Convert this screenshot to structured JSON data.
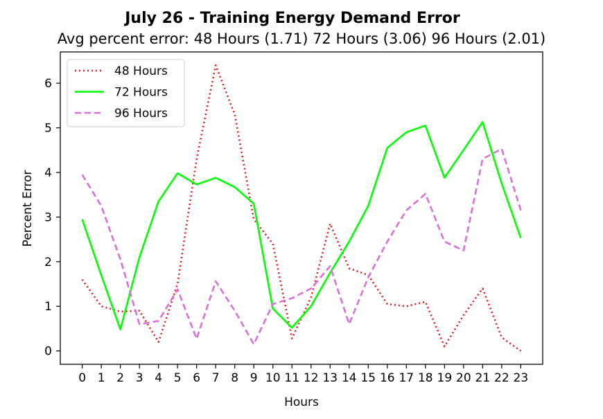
{
  "chart_data": {
    "type": "line",
    "title": "July 26 - Training Energy Demand Error",
    "subtitle": "Avg percent error: 48 Hours (1.71) 72 Hours (3.06) 96 Hours (2.01)",
    "xlabel": "Hours",
    "ylabel": "Percent Error",
    "x": [
      0,
      1,
      2,
      3,
      4,
      5,
      6,
      7,
      8,
      9,
      10,
      11,
      12,
      13,
      14,
      15,
      16,
      17,
      18,
      19,
      20,
      21,
      22,
      23
    ],
    "x_tick_labels": [
      "0",
      "1",
      "2",
      "3",
      "4",
      "5",
      "6",
      "7",
      "8",
      "9",
      "10",
      "11",
      "12",
      "13",
      "14",
      "15",
      "16",
      "17",
      "18",
      "19",
      "20",
      "21",
      "22",
      "23"
    ],
    "y_tick_labels": [
      "0",
      "1",
      "2",
      "3",
      "4",
      "5",
      "6"
    ],
    "xlim": [
      -1.15,
      24.15
    ],
    "ylim": [
      -0.3,
      6.7
    ],
    "grid": false,
    "legend_position": "top-left",
    "series": [
      {
        "name": "48 Hours",
        "color": "#e41a1c",
        "style": "dotted",
        "values": [
          1.6,
          1.0,
          0.88,
          0.9,
          0.2,
          1.5,
          4.3,
          6.4,
          5.3,
          2.95,
          2.4,
          0.28,
          1.2,
          2.85,
          1.85,
          1.7,
          1.05,
          1.0,
          1.1,
          0.1,
          0.8,
          1.4,
          0.3,
          0.0
        ]
      },
      {
        "name": "72 Hours",
        "color": "#00ff00",
        "style": "solid",
        "values": [
          2.95,
          1.7,
          0.48,
          2.1,
          3.35,
          3.98,
          3.73,
          3.88,
          3.67,
          3.3,
          0.95,
          0.52,
          1.0,
          1.75,
          2.45,
          3.25,
          4.55,
          4.9,
          5.05,
          3.88,
          4.5,
          5.13,
          3.75,
          2.53
        ]
      },
      {
        "name": "96 Hours",
        "color": "#da70d6",
        "style": "dashed",
        "values": [
          3.95,
          3.25,
          2.05,
          0.6,
          0.67,
          1.38,
          0.27,
          1.56,
          0.9,
          0.15,
          1.05,
          1.18,
          1.4,
          1.9,
          0.6,
          1.65,
          2.45,
          3.15,
          3.52,
          2.45,
          2.25,
          4.3,
          4.53,
          3.15
        ]
      }
    ]
  }
}
